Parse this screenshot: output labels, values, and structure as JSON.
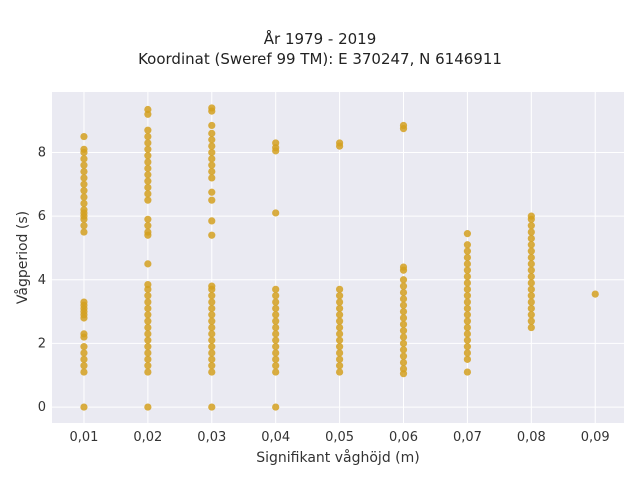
{
  "chart_data": {
    "type": "scatter",
    "title": "År 1979 - 2019",
    "subtitle": "Koordinat (Sweref 99 TM): E 370247, N 6146911",
    "xlabel": "Signifikant våghöjd (m)",
    "ylabel": "Vågperiod (s)",
    "xlim": [
      0.005,
      0.0945
    ],
    "ylim": [
      -0.5,
      9.9
    ],
    "x_ticks": [
      0.01,
      0.02,
      0.03,
      0.04,
      0.05,
      0.06,
      0.07,
      0.08,
      0.09
    ],
    "x_tick_labels": [
      "0,01",
      "0,02",
      "0,03",
      "0,04",
      "0,05",
      "0,06",
      "0,07",
      "0,08",
      "0,09"
    ],
    "y_ticks": [
      0,
      2,
      4,
      6,
      8
    ],
    "y_tick_labels": [
      "0",
      "2",
      "4",
      "6",
      "8"
    ],
    "grid": true,
    "color": "#d4a020",
    "background": "#eaeaf2",
    "columns": [
      {
        "x": 0.01,
        "points": [
          0.0,
          1.1,
          1.3,
          1.5,
          1.7,
          1.9,
          2.2,
          2.3,
          2.8,
          2.9,
          3.0,
          3.1,
          3.2,
          3.3,
          5.5,
          5.7,
          5.9,
          6.0,
          6.1,
          6.2,
          6.4,
          6.6,
          6.8,
          7.0,
          7.2,
          7.4,
          7.6,
          7.8,
          8.0,
          8.1,
          8.5
        ]
      },
      {
        "x": 0.02,
        "points": [
          0.0,
          1.1,
          1.3,
          1.5,
          1.7,
          1.9,
          2.1,
          2.3,
          2.5,
          2.7,
          2.9,
          3.1,
          3.3,
          3.5,
          3.7,
          3.85,
          4.5,
          5.4,
          5.5,
          5.7,
          5.9,
          6.5,
          6.7,
          6.9,
          7.1,
          7.3,
          7.5,
          7.7,
          7.9,
          8.1,
          8.3,
          8.5,
          8.7,
          9.2,
          9.35
        ]
      },
      {
        "x": 0.03,
        "points": [
          0.0,
          1.1,
          1.3,
          1.5,
          1.7,
          1.9,
          2.1,
          2.3,
          2.5,
          2.7,
          2.9,
          3.1,
          3.3,
          3.5,
          3.7,
          3.8,
          5.4,
          5.85,
          6.5,
          6.75,
          7.2,
          7.4,
          7.6,
          7.8,
          8.0,
          8.2,
          8.4,
          8.6,
          8.85,
          9.3,
          9.4
        ]
      },
      {
        "x": 0.04,
        "points": [
          0.0,
          1.1,
          1.3,
          1.5,
          1.7,
          1.9,
          2.1,
          2.3,
          2.5,
          2.7,
          2.9,
          3.1,
          3.3,
          3.5,
          3.7,
          6.1,
          8.05,
          8.15,
          8.3
        ]
      },
      {
        "x": 0.05,
        "points": [
          1.1,
          1.3,
          1.5,
          1.7,
          1.9,
          2.1,
          2.3,
          2.5,
          2.7,
          2.9,
          3.1,
          3.3,
          3.5,
          3.7,
          8.2,
          8.3
        ]
      },
      {
        "x": 0.06,
        "points": [
          1.05,
          1.2,
          1.4,
          1.6,
          1.8,
          2.0,
          2.2,
          2.4,
          2.6,
          2.8,
          3.0,
          3.2,
          3.4,
          3.6,
          3.8,
          4.0,
          4.3,
          4.4,
          8.75,
          8.85
        ]
      },
      {
        "x": 0.07,
        "points": [
          1.1,
          1.5,
          1.7,
          1.9,
          2.1,
          2.3,
          2.5,
          2.7,
          2.9,
          3.1,
          3.3,
          3.5,
          3.7,
          3.9,
          4.1,
          4.3,
          4.5,
          4.7,
          4.9,
          5.1,
          5.45
        ]
      },
      {
        "x": 0.08,
        "points": [
          2.5,
          2.7,
          2.9,
          3.1,
          3.3,
          3.5,
          3.7,
          3.9,
          4.1,
          4.3,
          4.5,
          4.7,
          4.9,
          5.1,
          5.3,
          5.5,
          5.7,
          5.9,
          6.0
        ]
      },
      {
        "x": 0.09,
        "points": [
          3.55
        ]
      }
    ]
  }
}
